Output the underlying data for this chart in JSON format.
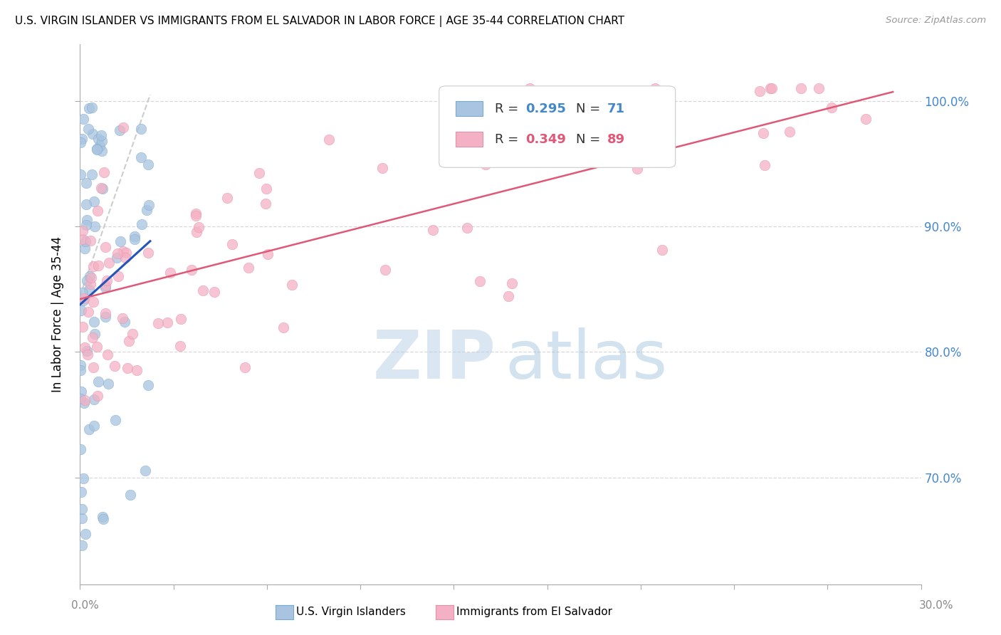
{
  "title": "U.S. VIRGIN ISLANDER VS IMMIGRANTS FROM EL SALVADOR IN LABOR FORCE | AGE 35-44 CORRELATION CHART",
  "source": "Source: ZipAtlas.com",
  "ylabel": "In Labor Force | Age 35-44",
  "yaxis_values": [
    0.7,
    0.8,
    0.9,
    1.0
  ],
  "yaxis_labels": [
    "70.0%",
    "80.0%",
    "90.0%",
    "100.0%"
  ],
  "xmin": 0.0,
  "xmax": 0.3,
  "ymin": 0.615,
  "ymax": 1.045,
  "blue_R": 0.295,
  "blue_N": 71,
  "pink_R": 0.349,
  "pink_N": 89,
  "blue_color": "#a8c4e0",
  "blue_edge_color": "#7aaad0",
  "blue_line_color": "#2255bb",
  "pink_color": "#f4b0c4",
  "pink_edge_color": "#e890a8",
  "pink_line_color": "#e05878",
  "ref_line_color": "#c8c8c8",
  "grid_color": "#d8d8d8",
  "right_axis_color": "#4488cc",
  "watermark_zip_color": "#b8cfe8",
  "watermark_atlas_color": "#90b8d8"
}
